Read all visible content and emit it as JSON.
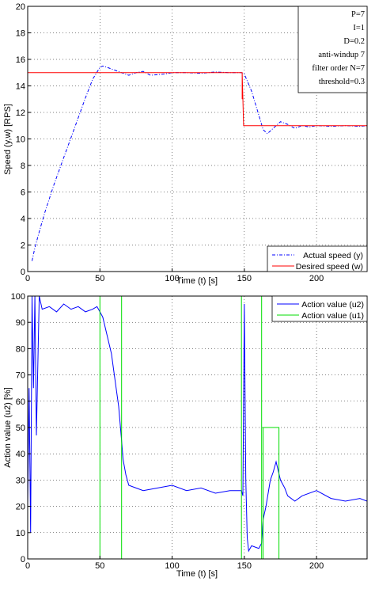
{
  "chart_data": [
    {
      "type": "line",
      "xlabel": "Time (t) [s]",
      "ylabel": "Speed (y,w) [RPS]",
      "xlim": [
        0,
        235
      ],
      "ylim": [
        0,
        20
      ],
      "xticks": [
        0,
        50,
        100,
        150,
        200
      ],
      "yticks": [
        0,
        2,
        4,
        6,
        8,
        10,
        12,
        14,
        16,
        18,
        20
      ],
      "grid": true,
      "legend_position": "bottom-right",
      "annotation_position": "top-right",
      "annotations": [
        "P=7",
        "I=1",
        "D=0.2",
        "anti-windup 7",
        "filter order N=7",
        "threshold=0.3"
      ],
      "series": [
        {
          "name": "Actual speed (y)",
          "color": "#0000ff",
          "style": "dash-dot",
          "x": [
            3,
            5,
            8,
            12,
            18,
            25,
            30,
            35,
            40,
            45,
            50,
            52,
            55,
            60,
            65,
            70,
            75,
            80,
            85,
            90,
            95,
            100,
            110,
            120,
            130,
            140,
            148,
            150,
            155,
            160,
            163,
            166,
            170,
            175,
            180,
            185,
            190,
            195,
            200,
            210,
            220,
            230,
            235
          ],
          "y": [
            0.8,
            1.8,
            3.0,
            4.5,
            6.5,
            8.6,
            10.1,
            11.6,
            13.1,
            14.5,
            15.4,
            15.5,
            15.4,
            15.2,
            15.0,
            14.8,
            15.0,
            15.1,
            14.8,
            14.85,
            14.9,
            15.0,
            15.0,
            14.95,
            15.05,
            15.0,
            15.0,
            14.9,
            13.6,
            11.8,
            10.7,
            10.4,
            10.8,
            11.3,
            11.1,
            10.8,
            11.0,
            10.9,
            11.0,
            10.95,
            11.0,
            10.95,
            11.0
          ]
        },
        {
          "name": "Desired speed (w)",
          "color": "#ff0000",
          "style": "solid",
          "x": [
            0,
            148.5,
            148.5,
            148.5,
            149.5,
            235
          ],
          "y": [
            15,
            15,
            13,
            15,
            11,
            11
          ]
        }
      ]
    },
    {
      "type": "line",
      "xlabel": "Time (t) [s]",
      "ylabel": "Action value (u2) [%]",
      "xlim": [
        0,
        235
      ],
      "ylim": [
        0,
        100
      ],
      "xticks": [
        0,
        50,
        100,
        150,
        200
      ],
      "yticks": [
        0,
        10,
        20,
        30,
        40,
        50,
        60,
        70,
        80,
        90,
        100
      ],
      "grid": true,
      "legend_position": "top-right",
      "series": [
        {
          "name": "Action value (u2)",
          "color": "#0000ff",
          "style": "solid",
          "x": [
            0,
            1,
            2,
            3,
            4,
            5,
            6,
            8,
            10,
            15,
            20,
            25,
            30,
            35,
            40,
            45,
            48,
            50,
            52,
            55,
            58,
            60,
            63,
            65,
            66,
            68,
            70,
            75,
            80,
            90,
            100,
            110,
            120,
            130,
            140,
            148,
            149,
            150,
            151,
            152,
            153,
            155,
            160,
            162,
            163,
            165,
            168,
            170,
            172,
            175,
            178,
            180,
            185,
            190,
            200,
            210,
            220,
            230,
            235
          ],
          "y": [
            20,
            65,
            10,
            100,
            65,
            100,
            47,
            100,
            95,
            96,
            94,
            97,
            95,
            96,
            94,
            95,
            96,
            94,
            92,
            85,
            78,
            70,
            58,
            45,
            38,
            32,
            28,
            27,
            26,
            27,
            28,
            26,
            27,
            25,
            26,
            26,
            24,
            97,
            30,
            8,
            3,
            5,
            4,
            6,
            15,
            20,
            30,
            33,
            37,
            30,
            27,
            24,
            22,
            24,
            26,
            23,
            22,
            23,
            22
          ]
        },
        {
          "name": "Action value (u1)",
          "color": "#00dd00",
          "style": "solid",
          "x": [
            0,
            50,
            50,
            65,
            65,
            148,
            148,
            162,
            162,
            163,
            163,
            174,
            174,
            235
          ],
          "y": [
            0,
            0,
            100,
            100,
            0,
            0,
            100,
            100,
            0,
            0,
            50,
            50,
            0,
            0
          ]
        }
      ]
    }
  ]
}
